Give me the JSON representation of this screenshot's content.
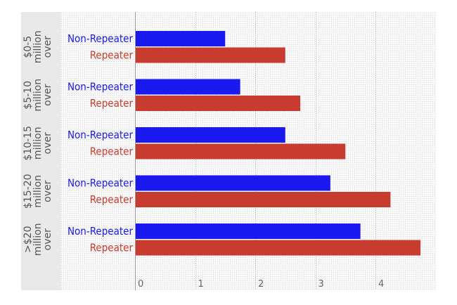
{
  "chart_data": {
    "type": "bar",
    "orientation": "horizontal",
    "groups": [
      {
        "label_lines": [
          "$0-5",
          "million",
          "over"
        ],
        "bars": [
          {
            "category": "Non-Repeater",
            "value": 1.5
          },
          {
            "category": "Repeater",
            "value": 2.5
          }
        ]
      },
      {
        "label_lines": [
          "$5-10",
          "million",
          "over"
        ],
        "bars": [
          {
            "category": "Non-Repeater",
            "value": 1.75
          },
          {
            "category": "Repeater",
            "value": 2.75
          }
        ]
      },
      {
        "label_lines": [
          "$10-15",
          "million",
          "over"
        ],
        "bars": [
          {
            "category": "Non-Repeater",
            "value": 2.5
          },
          {
            "category": "Repeater",
            "value": 3.5
          }
        ]
      },
      {
        "label_lines": [
          "$15-20",
          "million",
          "over"
        ],
        "bars": [
          {
            "category": "Non-Repeater",
            "value": 3.25
          },
          {
            "category": "Repeater",
            "value": 4.25
          }
        ]
      },
      {
        "label_lines": [
          ">$20",
          "million",
          "over"
        ],
        "bars": [
          {
            "category": "Non-Repeater",
            "value": 3.75
          },
          {
            "category": "Repeater",
            "value": 4.75
          }
        ]
      }
    ],
    "xlim": [
      0,
      4.9
    ],
    "xticks": [
      "0",
      "1",
      "2",
      "3",
      "4"
    ],
    "grid": true,
    "title": "",
    "xlabel": "",
    "ylabel": "",
    "colors": {
      "Non-Repeater": "#1a1af0",
      "Repeater": "#c83c30",
      "group_label_band": "#e8e8e8",
      "plot_background": "#f7f7f7",
      "grid": "#bbbbbb"
    }
  }
}
